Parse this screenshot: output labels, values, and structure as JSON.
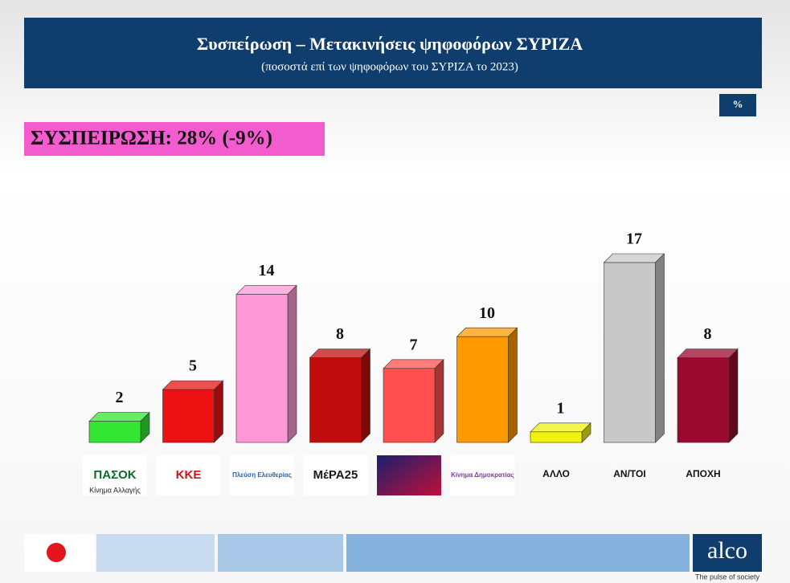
{
  "chart_data": {
    "type": "bar3d",
    "title": "Συσπείρωση – Μετακινήσεις ψηφοφόρων ΣΥΡΙΖΑ",
    "subtitle": "(ποσοστά επί των ψηφοφόρων του ΣΥΡΙΖΑ το 2023)",
    "unit_badge": "%",
    "annotation": "ΣΥΣΠΕΙΡΩΣΗ: 28% (-9%)",
    "categories": [
      "ΠΑΣΟΚ",
      "ΚΚΕ",
      "Πλεύση Ελευθερίας",
      "ΜέΡΑ25",
      null,
      "Κίνημα Δημοκρατίας",
      "ΑΛΛΟ",
      "ΑΝ/ΤΟΙ",
      "ΑΠΟΧΗ"
    ],
    "category_captions": [
      "Κίνημα Αλλαγής",
      null,
      null,
      null,
      null,
      null,
      null,
      null,
      null
    ],
    "label_colors": [
      "#0a6b2a",
      "#d0101a",
      "#2a62a8",
      "#1a1a1a",
      "#ffffff",
      "#7a3e9a",
      "#111111",
      "#111111",
      "#111111"
    ],
    "values": [
      2,
      5,
      14,
      8,
      7,
      10,
      1,
      17,
      8
    ],
    "colors": [
      "#33e633",
      "#ee1111",
      "#ff99d6",
      "#c00d0d",
      "#ff5050",
      "#ff9900",
      "#f2f20f",
      "#c8c8c8",
      "#990a2e"
    ],
    "brand": "alco",
    "tagline": "The pulse of society"
  }
}
